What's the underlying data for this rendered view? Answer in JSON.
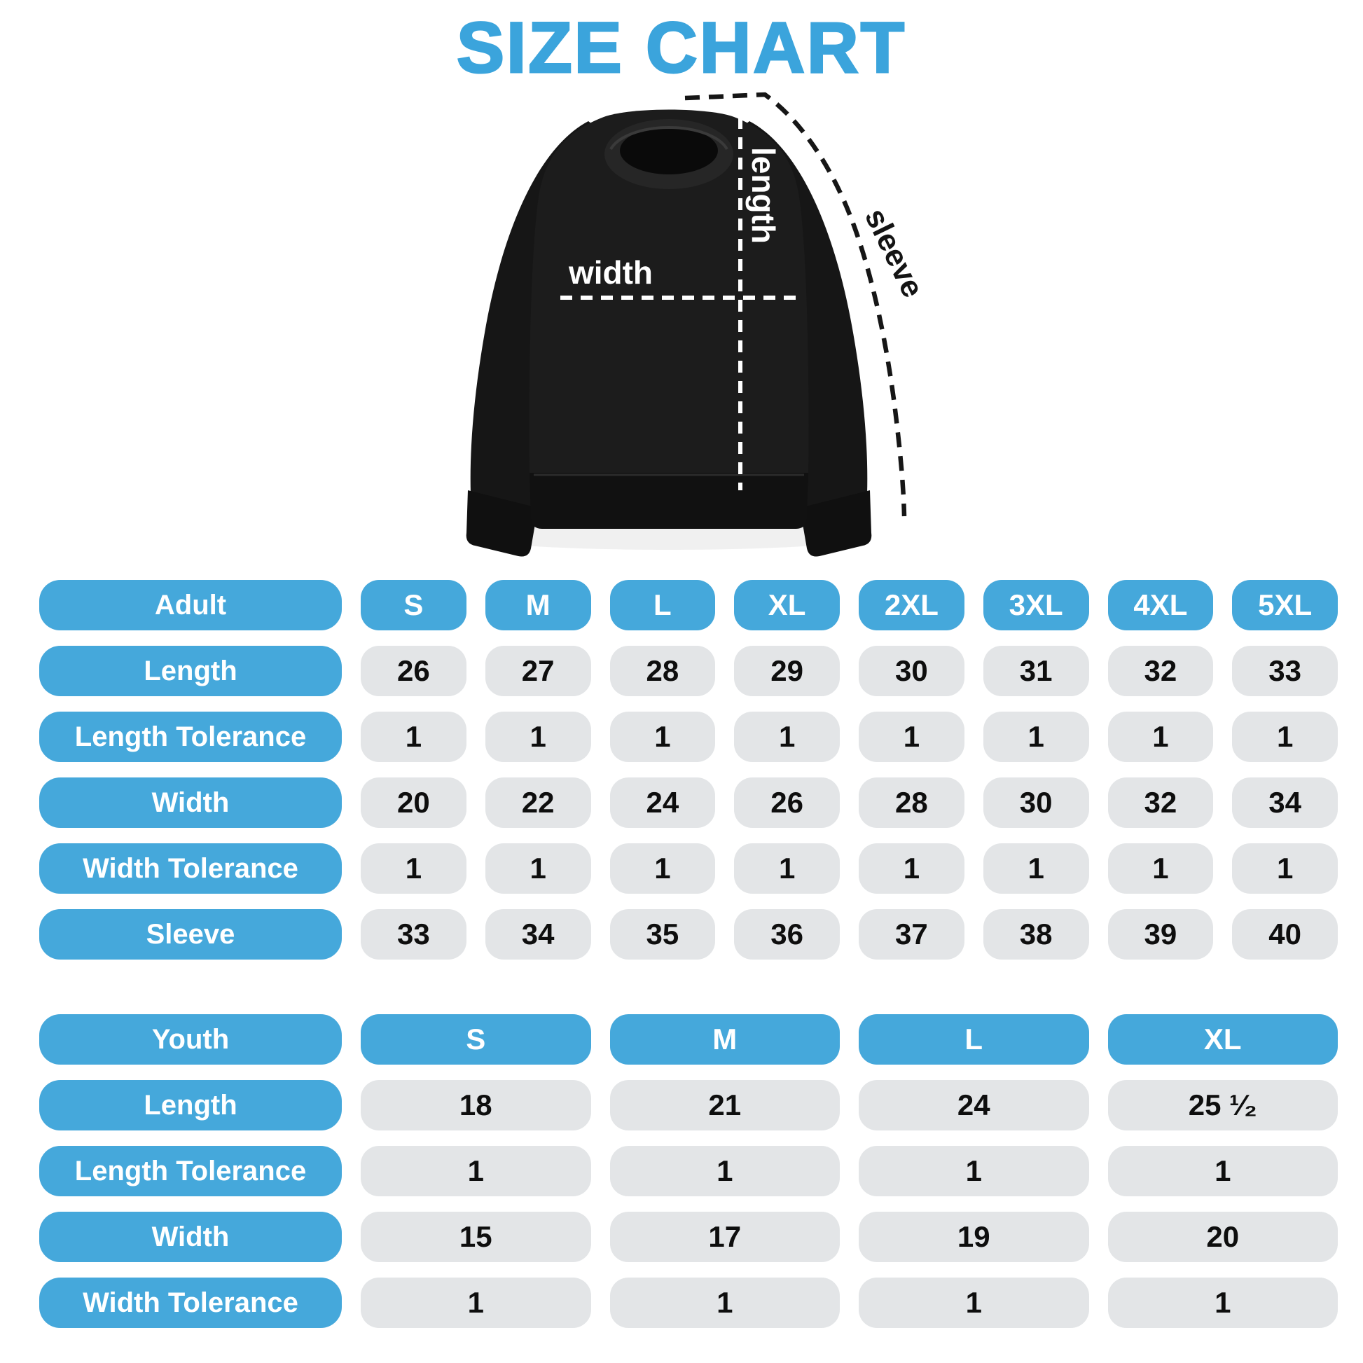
{
  "title": "SIZE CHART",
  "diagram": {
    "garment": "crewneck-sweatshirt",
    "labels": {
      "length": "length",
      "width": "width",
      "sleeve": "sleeve"
    }
  },
  "colors": {
    "title_blue": "#3BA4DC",
    "accent_blue": "#45A8DB",
    "pill_gray": "#E3E5E7",
    "header_text": "#FFFFFF",
    "value_text": "#0E0E0E",
    "garment_black": "#1C1C1C"
  },
  "tables": {
    "adult": {
      "header": [
        "Adult",
        "S",
        "M",
        "L",
        "XL",
        "2XL",
        "3XL",
        "4XL",
        "5XL"
      ],
      "rows": [
        {
          "label": "Length",
          "values": [
            "26",
            "27",
            "28",
            "29",
            "30",
            "31",
            "32",
            "33"
          ]
        },
        {
          "label": "Length Tolerance",
          "values": [
            "1",
            "1",
            "1",
            "1",
            "1",
            "1",
            "1",
            "1"
          ]
        },
        {
          "label": "Width",
          "values": [
            "20",
            "22",
            "24",
            "26",
            "28",
            "30",
            "32",
            "34"
          ]
        },
        {
          "label": "Width Tolerance",
          "values": [
            "1",
            "1",
            "1",
            "1",
            "1",
            "1",
            "1",
            "1"
          ]
        },
        {
          "label": "Sleeve",
          "values": [
            "33",
            "34",
            "35",
            "36",
            "37",
            "38",
            "39",
            "40"
          ]
        }
      ]
    },
    "youth": {
      "header": [
        "Youth",
        "S",
        "M",
        "L",
        "XL"
      ],
      "rows": [
        {
          "label": "Length",
          "values": [
            "18",
            "21",
            "24",
            "25 ¹⁄₂"
          ]
        },
        {
          "label": "Length Tolerance",
          "values": [
            "1",
            "1",
            "1",
            "1"
          ]
        },
        {
          "label": "Width",
          "values": [
            "15",
            "17",
            "19",
            "20"
          ]
        },
        {
          "label": "Width Tolerance",
          "values": [
            "1",
            "1",
            "1",
            "1"
          ]
        }
      ]
    }
  }
}
